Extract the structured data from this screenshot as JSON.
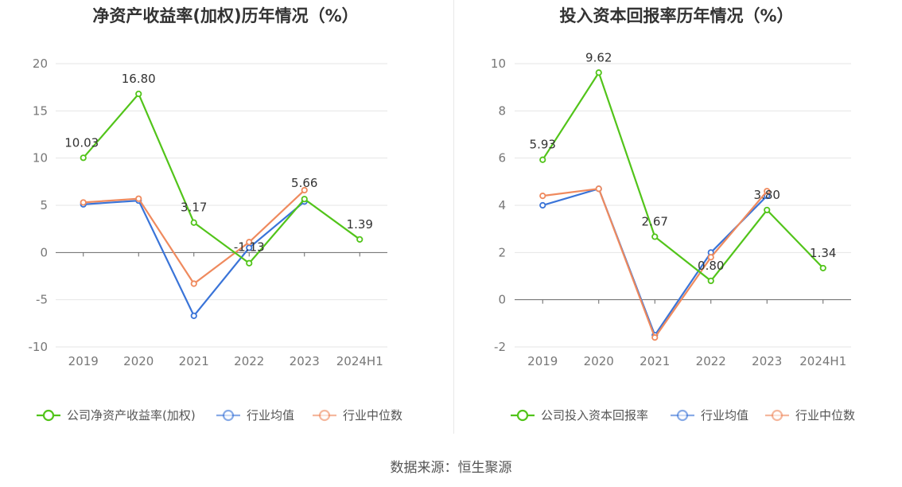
{
  "source": "数据来源：恒生聚源",
  "chart_data": [
    {
      "type": "line",
      "title": "净资产收益率(加权)历年情况（%）",
      "categories": [
        "2019",
        "2020",
        "2021",
        "2022",
        "2023",
        "2024H1"
      ],
      "ylim": [
        -10,
        20
      ],
      "yticks": [
        -10,
        -5,
        0,
        5,
        10,
        15,
        20
      ],
      "grid": true,
      "legend_position": "bottom",
      "series": [
        {
          "name": "公司净资产收益率(加权)",
          "color": "#52c41a",
          "values": [
            10.03,
            16.8,
            3.17,
            -1.13,
            5.66,
            1.39
          ],
          "labels": [
            "10.03",
            "16.80",
            "3.17",
            "-1.13",
            "5.66",
            "1.39"
          ]
        },
        {
          "name": "行业均值",
          "color": "#3a74d8",
          "values": [
            5.1,
            5.5,
            -6.7,
            0.5,
            5.4,
            null
          ]
        },
        {
          "name": "行业中位数",
          "color": "#ef8a5e",
          "values": [
            5.3,
            5.7,
            -3.3,
            1.1,
            6.6,
            null
          ]
        }
      ]
    },
    {
      "type": "line",
      "title": "投入资本回报率历年情况（%）",
      "categories": [
        "2019",
        "2020",
        "2021",
        "2022",
        "2023",
        "2024H1"
      ],
      "ylim": [
        -2,
        10
      ],
      "yticks": [
        -2,
        0,
        2,
        4,
        6,
        8,
        10
      ],
      "grid": true,
      "legend_position": "bottom",
      "series": [
        {
          "name": "公司投入资本回报率",
          "color": "#52c41a",
          "values": [
            5.93,
            9.62,
            2.67,
            0.8,
            3.8,
            1.34
          ],
          "labels": [
            "5.93",
            "9.62",
            "2.67",
            "0.80",
            "3.80",
            "1.34"
          ]
        },
        {
          "name": "行业均值",
          "color": "#3a74d8",
          "values": [
            4.0,
            4.7,
            -1.5,
            2.0,
            4.4,
            null
          ]
        },
        {
          "name": "行业中位数",
          "color": "#ef8a5e",
          "values": [
            4.4,
            4.7,
            -1.6,
            1.8,
            4.6,
            null
          ]
        }
      ]
    }
  ]
}
